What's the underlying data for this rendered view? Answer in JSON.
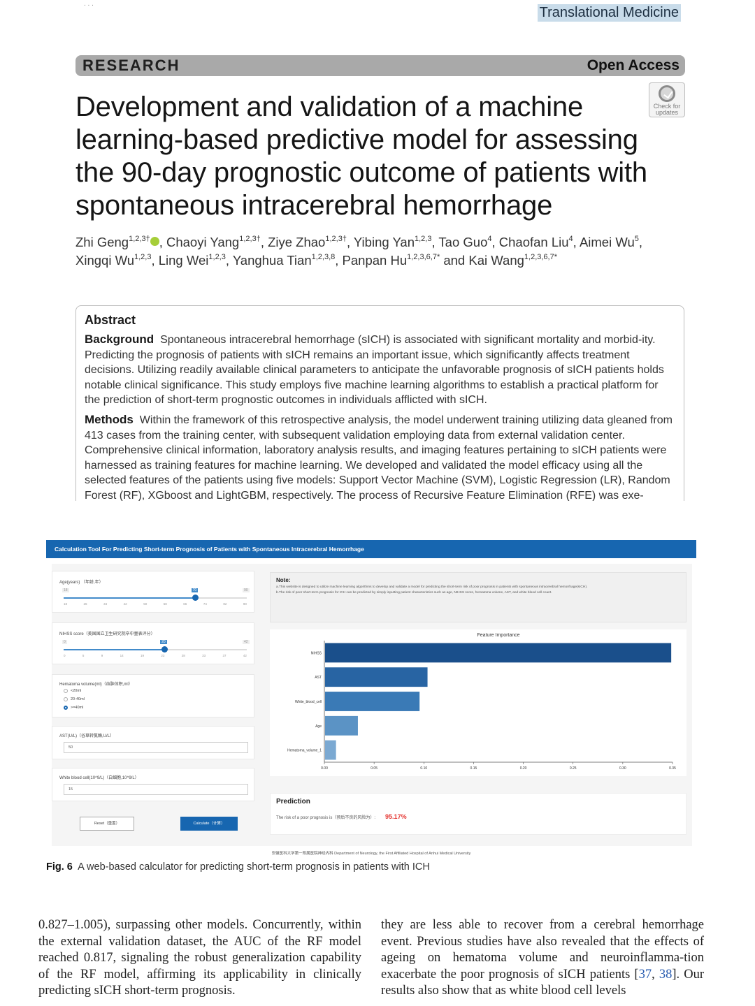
{
  "header": {
    "journal": "Translational Medicine",
    "top_mark": ". . .",
    "section": "RESEARCH",
    "access": "Open Access",
    "check_updates": "Check for updates"
  },
  "title": "Development and validation of a machine learning-based predictive model for assessing the 90-day prognostic outcome of patients with spontaneous intracerebral hemorrhage",
  "authors": [
    {
      "name": "Zhi Geng",
      "sup": "1,2,3†",
      "orcid": true
    },
    {
      "name": "Chaoyi Yang",
      "sup": "1,2,3†"
    },
    {
      "name": "Ziye Zhao",
      "sup": "1,2,3†"
    },
    {
      "name": "Yibing Yan",
      "sup": "1,2,3"
    },
    {
      "name": "Tao Guo",
      "sup": "4"
    },
    {
      "name": "Chaofan Liu",
      "sup": "4"
    },
    {
      "name": "Aimei Wu",
      "sup": "5"
    },
    {
      "name": "Xingqi Wu",
      "sup": "1,2,3"
    },
    {
      "name": "Ling Wei",
      "sup": "1,2,3"
    },
    {
      "name": "Yanghua Tian",
      "sup": "1,2,3,8"
    },
    {
      "name": "Panpan Hu",
      "sup": "1,2,3,6,7*"
    },
    {
      "name": "Kai Wang",
      "sup": "1,2,3,6,7*"
    }
  ],
  "abstract": {
    "heading": "Abstract",
    "background_label": "Background",
    "background_text": "Spontaneous intracerebral hemorrhage (sICH) is associated with significant mortality and morbid-ity. Predicting the prognosis of patients with sICH remains an important issue, which significantly affects treatment decisions. Utilizing readily available clinical parameters to anticipate the unfavorable prognosis of sICH patients holds notable clinical significance. This study employs five machine learning algorithms to establish a practical platform for the prediction of short-term prognostic outcomes in individuals afflicted with sICH.",
    "methods_label": "Methods",
    "methods_text": "Within the framework of this retrospective analysis, the model underwent training utilizing data gleaned from 413 cases from the training center, with subsequent validation employing data from external validation center. Comprehensive clinical information, laboratory analysis results, and imaging features pertaining to sICH patients were harnessed as training features for machine learning. We developed and validated the model efficacy using all the selected features of the patients using five models: Support Vector Machine (SVM), Logistic Regression (LR), Random Forest (RF), XGboost and LightGBM, respectively. The process of Recursive Feature Elimination (RFE) was exe-"
  },
  "figure": {
    "app_title": "Calculation Tool For Predicting Short-term Prognosis of Patients with Spontaneous Intracerebral Hemorrhage",
    "age_label": "Age(years) （年龄,年）",
    "age_min": "18",
    "age_max": "90",
    "age_value": "70",
    "age_fraction": 0.72,
    "age_ticks": [
      "18",
      "26",
      "34",
      "42",
      "50",
      "58",
      "66",
      "74",
      "82",
      "90"
    ],
    "nihss_label": "NIHSS score（美国国立卫生研究院卒中量表评分）",
    "nihss_min": "0",
    "nihss_max": "42",
    "nihss_value": "20",
    "nihss_fraction": 0.55,
    "nihss_ticks": [
      "0",
      "5",
      "9",
      "14",
      "19",
      "23",
      "28",
      "33",
      "37",
      "42"
    ],
    "hematoma_label": "Hematoma volume(ml)（血肿体积,ml）",
    "hematoma_options": [
      "<20ml",
      "20-40ml",
      ">=40ml"
    ],
    "hematoma_selected": 2,
    "ast_label": "AST(U/L)（谷草转氨酶,U/L）",
    "ast_value": "50",
    "wbc_label": "White blood cell(10^9/L)（白细胞,10^9/L）",
    "wbc_value": "15",
    "reset_label": "Reset（重置）",
    "calculate_label": "Calculate（计算）",
    "note_heading": "Note:",
    "note_a": "a.This website is designed to utilize machine learning algorithms to develop and validate a model for predicting the short-term risk of poor prognosis in patients with spontaneous intracerebral hemorrhage(sICH).",
    "note_b": "b.The risk of poor short-term prognosis for ICH can be predicted by simply inputting patient characteristics such as age, NIHSS score, hematoma volume, AST, and white blood cell count.",
    "prediction_heading": "Prediction",
    "prediction_text": "The risk of a poor prognosis is（预后不良的风险为）:",
    "prediction_value": "95.17%",
    "credit": "安徽医科大学第一附属医院神经内科 Department of Neurology, the First Affiliated Hospital of Anhui Medical University"
  },
  "chart_data": {
    "type": "bar",
    "orientation": "horizontal",
    "title": "Feature Importance",
    "categories": [
      "NIHSS",
      "AST",
      "White_blood_cell",
      "Age",
      "Hematoma_volume_1"
    ],
    "values": [
      0.348,
      0.103,
      0.095,
      0.033,
      0.011
    ],
    "colors": [
      "#1a4f8b",
      "#2864a3",
      "#3a7ab6",
      "#5b93c5",
      "#7ba9d2"
    ],
    "xlim": [
      0,
      0.35
    ],
    "xticks": [
      "0.00",
      "0.05",
      "0.10",
      "0.15",
      "0.20",
      "0.25",
      "0.30",
      "0.35"
    ],
    "xlabel": "",
    "ylabel": ""
  },
  "caption": {
    "label": "Fig. 6",
    "text": "A web-based calculator for predicting short-term prognosis in patients with ICH"
  },
  "body": {
    "left": "0.827–1.005), surpassing other models. Concurrently, within the external validation dataset, the AUC of the RF model reached 0.817, signaling the robust generalization capability of the RF model, affirming its applicability in clinically predicting sICH short-term prognosis.",
    "right_1": "they are less able to recover from a cerebral hemorrhage event. Previous studies have also revealed that the effects of ageing on hematoma volume and neuroinflamma-tion exacerbate the poor prognosis of sICH patients [",
    "ref_1": "37",
    "ref_sep": ", ",
    "ref_2": "38",
    "right_2": "]. Our results also show that as white blood cell levels"
  }
}
